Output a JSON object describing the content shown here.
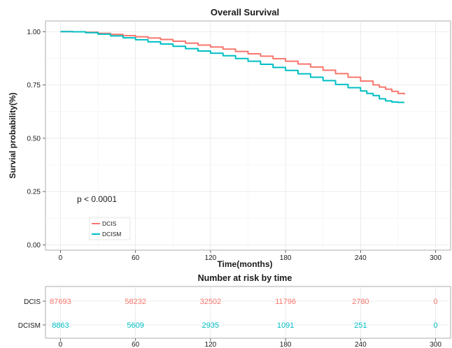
{
  "chart_data": [
    {
      "type": "line",
      "title": "Overall Survival",
      "xlabel": "Time(months)",
      "ylabel": "Survial probability(%)",
      "xlim": [
        -12,
        312
      ],
      "ylim": [
        -0.025,
        1.05
      ],
      "x_ticks": [
        "0",
        "60",
        "120",
        "180",
        "240",
        "300"
      ],
      "y_ticks": [
        "0.00",
        "0.25",
        "0.50",
        "0.75",
        "1.00"
      ],
      "grid": true,
      "legend_position": "bottom-left",
      "annotation": "p < 0.0001",
      "series": [
        {
          "name": "DCIS",
          "color": "#f8766d",
          "x": [
            0,
            10,
            20,
            30,
            40,
            50,
            60,
            70,
            80,
            90,
            100,
            110,
            120,
            130,
            140,
            150,
            160,
            170,
            180,
            190,
            200,
            210,
            220,
            230,
            240,
            250,
            255,
            260,
            265,
            270,
            275
          ],
          "y": [
            1.0,
            0.999,
            0.997,
            0.992,
            0.987,
            0.981,
            0.976,
            0.97,
            0.963,
            0.955,
            0.946,
            0.937,
            0.928,
            0.918,
            0.907,
            0.896,
            0.885,
            0.873,
            0.861,
            0.848,
            0.834,
            0.819,
            0.803,
            0.786,
            0.768,
            0.75,
            0.74,
            0.73,
            0.72,
            0.71,
            0.705
          ]
        },
        {
          "name": "DCISM",
          "color": "#00bfc4",
          "x": [
            0,
            10,
            20,
            30,
            40,
            50,
            60,
            70,
            80,
            90,
            100,
            110,
            120,
            130,
            140,
            150,
            160,
            170,
            180,
            190,
            200,
            210,
            220,
            230,
            240,
            245,
            250,
            255,
            260,
            265,
            270,
            275
          ],
          "y": [
            1.0,
            0.999,
            0.995,
            0.988,
            0.98,
            0.971,
            0.962,
            0.952,
            0.942,
            0.931,
            0.92,
            0.909,
            0.899,
            0.887,
            0.874,
            0.861,
            0.847,
            0.832,
            0.818,
            0.802,
            0.786,
            0.77,
            0.752,
            0.737,
            0.722,
            0.71,
            0.7,
            0.685,
            0.675,
            0.67,
            0.668,
            0.668
          ]
        }
      ]
    },
    {
      "type": "table",
      "title": "Number at risk by time",
      "xlim": [
        -12,
        312
      ],
      "x_ticks": [
        "0",
        "60",
        "120",
        "180",
        "240",
        "300"
      ],
      "times": [
        0,
        60,
        120,
        180,
        240,
        300
      ],
      "rows": [
        {
          "name": "DCIS",
          "color": "#f8766d",
          "values": [
            "87693",
            "58232",
            "32502",
            "11796",
            "2780",
            "0"
          ]
        },
        {
          "name": "DCISM",
          "color": "#00bfc4",
          "values": [
            "8863",
            "5609",
            "2935",
            "1091",
            "251",
            "0"
          ]
        }
      ]
    }
  ]
}
